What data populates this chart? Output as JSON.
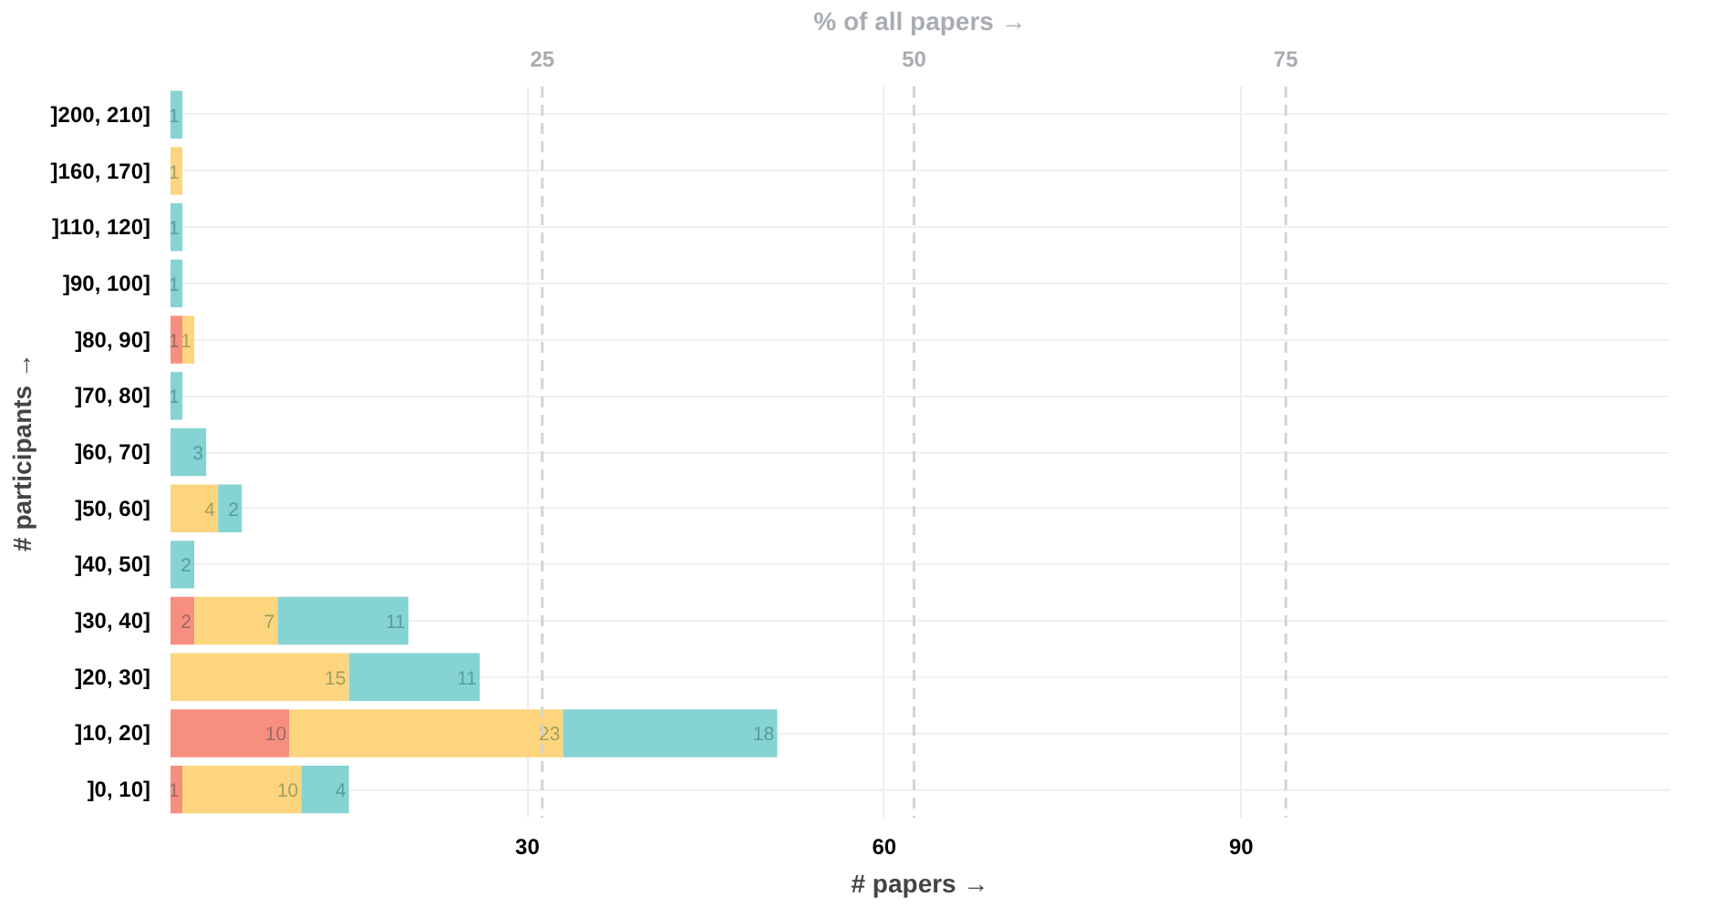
{
  "chart_data": {
    "type": "bar",
    "orientation": "horizontal",
    "stacked": true,
    "xlabel": "# papers →",
    "ylabel": "# participants →",
    "x2label": "% of all papers →",
    "categories": [
      "]200, 210]",
      "]160, 170]",
      "]110, 120]",
      "]90, 100]",
      "]80, 90]",
      "]70, 80]",
      "]60, 70]",
      "]50, 60]",
      "]40, 50]",
      "]30, 40]",
      "]20, 30]",
      "]10, 20]",
      "]0, 10]"
    ],
    "series": [
      {
        "color": "#f78f80",
        "values": [
          null,
          null,
          null,
          null,
          1,
          null,
          null,
          null,
          null,
          2,
          null,
          10,
          1
        ]
      },
      {
        "color": "#fdd57e",
        "values": [
          null,
          1,
          null,
          null,
          1,
          null,
          null,
          4,
          null,
          7,
          15,
          23,
          10
        ]
      },
      {
        "color": "#86d3d3",
        "values": [
          1,
          null,
          1,
          1,
          null,
          1,
          3,
          2,
          2,
          11,
          11,
          18,
          4
        ]
      }
    ],
    "xlim": [
      0,
      126
    ],
    "xticks": [
      30,
      60,
      90
    ],
    "x2lim": [
      0,
      100.8
    ],
    "x2ticks": [
      25,
      50,
      75
    ],
    "grid": true,
    "data_labels": true
  }
}
